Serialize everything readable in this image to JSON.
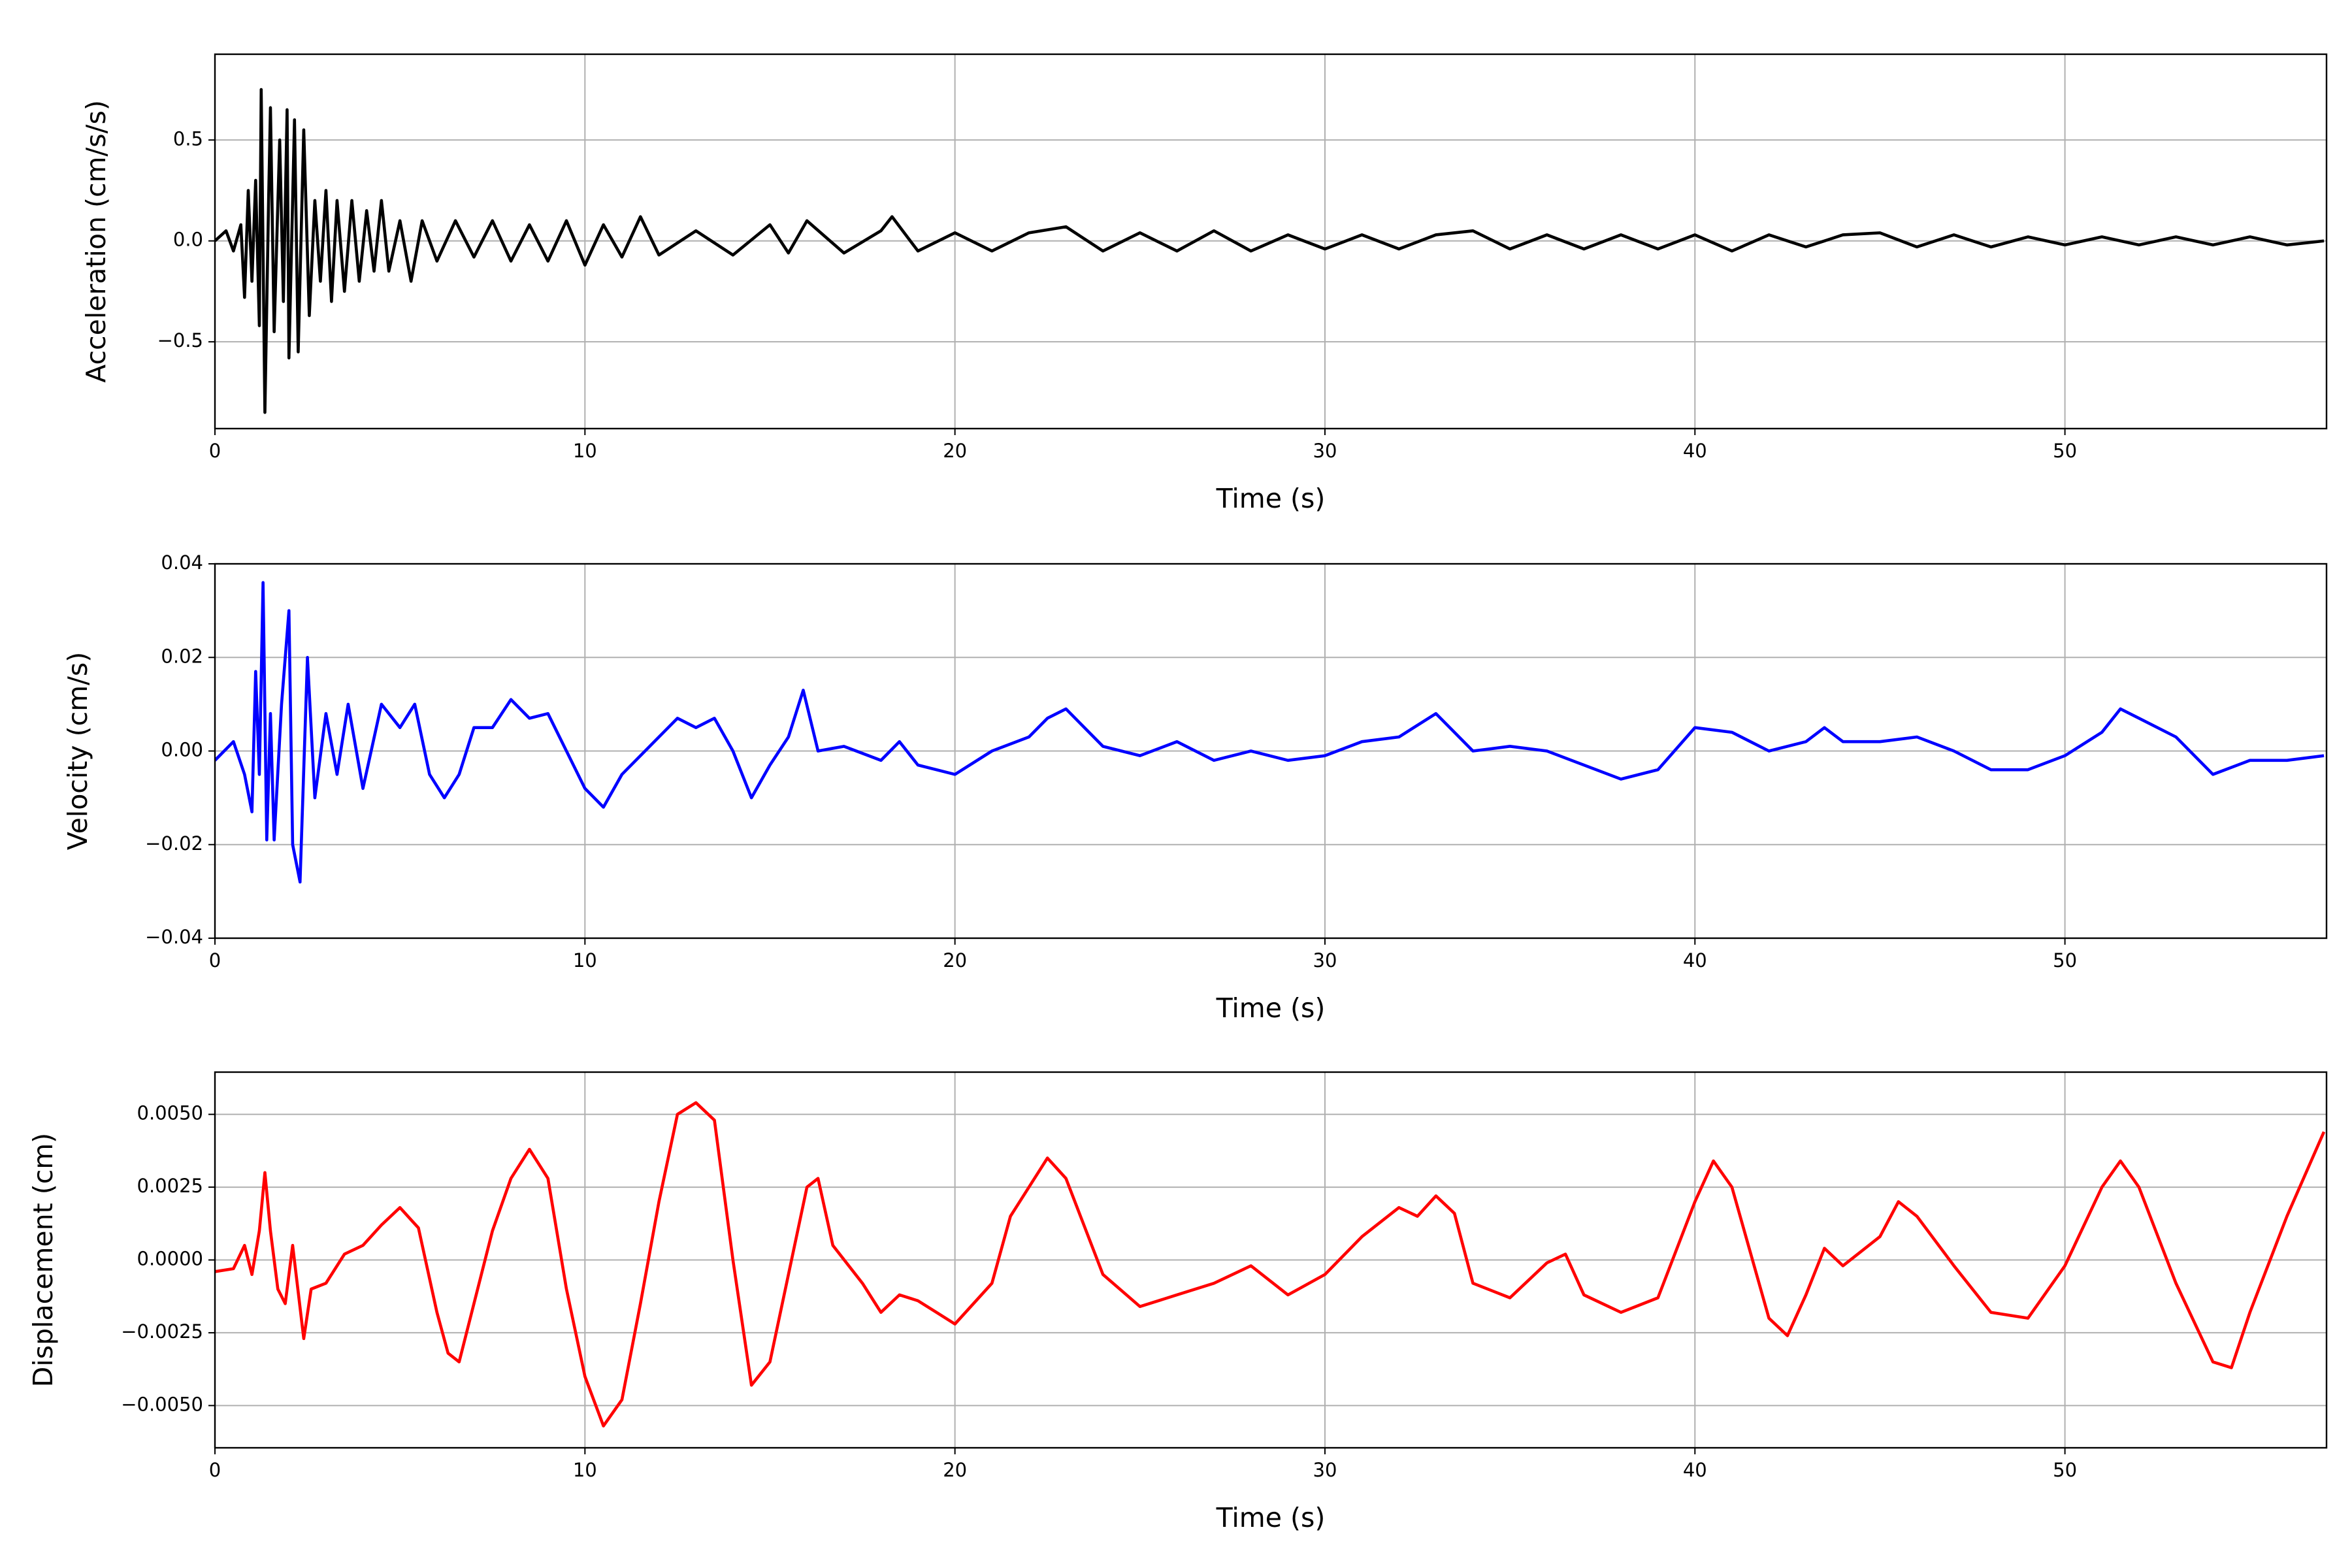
{
  "chart_data": [
    {
      "type": "line",
      "xlabel": "Time (s)",
      "ylabel": "Acceleration (cm/s/s)",
      "color": "#000000",
      "grid": true,
      "xlim": [
        0,
        57.07
      ],
      "xticks": [
        0,
        10,
        20,
        30,
        40,
        50
      ],
      "ylim": [
        -0.93,
        0.925
      ],
      "yticks": [
        {
          "value": -0.5,
          "label": "−0.5"
        },
        {
          "value": 0,
          "label": "0.0"
        },
        0.5
      ],
      "x": [
        0,
        0.3,
        0.5,
        0.7,
        0.8,
        0.9,
        1.0,
        1.1,
        1.2,
        1.25,
        1.35,
        1.45,
        1.5,
        1.6,
        1.75,
        1.85,
        1.95,
        2.0,
        2.15,
        2.25,
        2.4,
        2.55,
        2.7,
        2.85,
        3.0,
        3.15,
        3.3,
        3.5,
        3.7,
        3.9,
        4.1,
        4.3,
        4.5,
        4.7,
        5.0,
        5.3,
        5.6,
        6.0,
        6.5,
        7.0,
        7.5,
        8.0,
        8.5,
        9.0,
        9.5,
        10,
        10.5,
        11,
        11.5,
        12,
        13,
        14,
        15,
        15.5,
        16,
        17,
        18,
        18.3,
        19,
        20,
        21,
        22,
        23,
        24,
        25,
        26,
        27,
        28,
        29,
        30,
        31,
        32,
        33,
        34,
        35,
        36,
        37,
        38,
        39,
        40,
        41,
        42,
        43,
        44,
        45,
        46,
        47,
        48,
        49,
        50,
        51,
        52,
        53,
        54,
        55,
        56,
        57
      ],
      "values": [
        0,
        0.05,
        -0.05,
        0.08,
        -0.28,
        0.25,
        -0.2,
        0.3,
        -0.42,
        0.75,
        -0.85,
        0.2,
        0.66,
        -0.45,
        0.5,
        -0.3,
        0.65,
        -0.58,
        0.6,
        -0.55,
        0.55,
        -0.37,
        0.2,
        -0.2,
        0.25,
        -0.3,
        0.2,
        -0.25,
        0.2,
        -0.2,
        0.15,
        -0.15,
        0.2,
        -0.15,
        0.1,
        -0.2,
        0.1,
        -0.1,
        0.1,
        -0.08,
        0.1,
        -0.1,
        0.08,
        -0.1,
        0.1,
        -0.12,
        0.08,
        -0.08,
        0.12,
        -0.07,
        0.05,
        -0.07,
        0.08,
        -0.06,
        0.1,
        -0.06,
        0.05,
        0.12,
        -0.05,
        0.04,
        -0.05,
        0.04,
        0.07,
        -0.05,
        0.04,
        -0.05,
        0.05,
        -0.05,
        0.03,
        -0.04,
        0.03,
        -0.04,
        0.03,
        0.05,
        -0.04,
        0.03,
        -0.04,
        0.03,
        -0.04,
        0.03,
        -0.05,
        0.03,
        -0.03,
        0.03,
        0.04,
        -0.03,
        0.03,
        -0.03,
        0.02,
        -0.02,
        0.02,
        -0.02,
        0.02,
        -0.02,
        0.02,
        -0.02,
        0
      ]
    },
    {
      "type": "line",
      "xlabel": "Time (s)",
      "ylabel": "Velocity (cm/s)",
      "color": "#0000ff",
      "grid": true,
      "xlim": [
        0,
        57.07
      ],
      "xticks": [
        0,
        10,
        20,
        30,
        40,
        50
      ],
      "ylim": [
        -0.04,
        0.04
      ],
      "yticks": [
        {
          "value": -0.04,
          "label": "−0.04"
        },
        {
          "value": -0.02,
          "label": "−0.02"
        },
        {
          "value": 0,
          "label": "0.00"
        },
        {
          "value": 0.02,
          "label": "0.02"
        },
        {
          "value": 0.04,
          "label": "0.04"
        }
      ],
      "x": [
        0,
        0.5,
        0.8,
        1.0,
        1.1,
        1.2,
        1.3,
        1.4,
        1.5,
        1.6,
        1.8,
        2.0,
        2.1,
        2.3,
        2.5,
        2.7,
        3.0,
        3.3,
        3.6,
        4.0,
        4.5,
        5.0,
        5.4,
        5.8,
        6.2,
        6.6,
        7.0,
        7.5,
        8.0,
        8.5,
        9.0,
        9.5,
        10,
        10.5,
        11,
        12,
        12.5,
        13,
        13.5,
        14,
        14.5,
        15,
        15.5,
        15.9,
        16.3,
        17,
        18,
        18.5,
        19,
        20,
        21,
        22,
        22.5,
        23,
        24,
        25,
        26,
        27,
        28,
        29,
        30,
        31,
        32,
        33,
        34,
        35,
        36,
        37,
        38,
        39,
        40,
        41,
        42,
        43,
        43.5,
        44,
        45,
        46,
        47,
        48,
        49,
        50,
        51,
        51.5,
        52,
        53,
        54,
        55,
        56,
        57
      ],
      "values": [
        -0.002,
        0.002,
        -0.005,
        -0.013,
        0.017,
        -0.005,
        0.036,
        -0.019,
        0.008,
        -0.019,
        0.01,
        0.03,
        -0.02,
        -0.028,
        0.02,
        -0.01,
        0.008,
        -0.005,
        0.01,
        -0.008,
        0.01,
        0.005,
        0.01,
        -0.005,
        -0.01,
        -0.005,
        0.005,
        0.005,
        0.011,
        0.007,
        0.008,
        0,
        -0.008,
        -0.012,
        -0.005,
        0.003,
        0.007,
        0.005,
        0.007,
        0,
        -0.01,
        -0.003,
        0.003,
        0.013,
        0,
        0.001,
        -0.002,
        0.002,
        -0.003,
        -0.005,
        0,
        0.003,
        0.007,
        0.009,
        0.001,
        -0.001,
        0.002,
        -0.002,
        0,
        -0.002,
        -0.001,
        0.002,
        0.003,
        0.008,
        0,
        0.001,
        0,
        -0.003,
        -0.006,
        -0.004,
        0.005,
        0.004,
        0,
        0.002,
        0.005,
        0.002,
        0.002,
        0.003,
        0,
        -0.004,
        -0.004,
        -0.001,
        0.004,
        0.009,
        0.007,
        0.003,
        -0.005,
        -0.002,
        -0.002,
        -0.001
      ]
    },
    {
      "type": "line",
      "xlabel": "Time (s)",
      "ylabel": "Displacement (cm)",
      "color": "#ff0000",
      "grid": true,
      "xlim": [
        0,
        57.07
      ],
      "xticks": [
        0,
        10,
        20,
        30,
        40,
        50
      ],
      "ylim": [
        -0.00645,
        0.00645
      ],
      "yticks": [
        {
          "value": -0.005,
          "label": "−0.0050"
        },
        {
          "value": -0.0025,
          "label": "−0.0025"
        },
        {
          "value": 0,
          "label": "0.0000"
        },
        {
          "value": 0.0025,
          "label": "0.0025"
        },
        {
          "value": 0.005,
          "label": "0.0050"
        }
      ],
      "x": [
        0,
        0.5,
        0.8,
        1.0,
        1.2,
        1.35,
        1.5,
        1.7,
        1.9,
        2.1,
        2.4,
        2.6,
        3.0,
        3.5,
        4.0,
        4.5,
        5.0,
        5.5,
        6.0,
        6.3,
        6.6,
        7.0,
        7.5,
        8.0,
        8.5,
        9.0,
        9.5,
        10,
        10.5,
        11,
        11.5,
        12,
        12.5,
        13,
        13.5,
        14,
        14.5,
        15,
        15.5,
        16,
        16.3,
        16.7,
        17.5,
        18,
        18.5,
        19,
        19.5,
        20,
        21,
        21.5,
        22,
        22.5,
        23,
        24,
        25,
        26,
        27,
        28,
        29,
        30,
        31,
        32,
        32.5,
        33,
        33.5,
        34,
        35,
        36,
        36.5,
        37,
        38,
        39,
        40,
        40.5,
        41,
        42,
        42.5,
        43,
        43.5,
        44,
        45,
        45.5,
        46,
        47,
        48,
        49,
        50,
        51,
        51.5,
        52,
        53,
        54,
        54.5,
        55,
        56,
        57
      ],
      "values": [
        -0.0004,
        -0.0003,
        0.0005,
        -0.0005,
        0.001,
        0.003,
        0.001,
        -0.001,
        -0.0015,
        0.0005,
        -0.0027,
        -0.001,
        -0.0008,
        0.0002,
        0.0005,
        0.0012,
        0.0018,
        0.0011,
        -0.0018,
        -0.0032,
        -0.0035,
        -0.0015,
        0.001,
        0.0028,
        0.0038,
        0.0028,
        -0.001,
        -0.004,
        -0.0057,
        -0.0048,
        -0.0015,
        0.002,
        0.005,
        0.0054,
        0.0048,
        0,
        -0.0043,
        -0.0035,
        -0.0005,
        0.0025,
        0.0028,
        0.0005,
        -0.0008,
        -0.0018,
        -0.0012,
        -0.0014,
        -0.0018,
        -0.0022,
        -0.0008,
        0.0015,
        0.0025,
        0.0035,
        0.0028,
        -0.0005,
        -0.0016,
        -0.0012,
        -0.0008,
        -0.0002,
        -0.0012,
        -0.0005,
        0.0008,
        0.0018,
        0.0015,
        0.0022,
        0.0016,
        -0.0008,
        -0.0013,
        -0.0001,
        0.0002,
        -0.0012,
        -0.0018,
        -0.0013,
        0.002,
        0.0034,
        0.0025,
        -0.002,
        -0.0026,
        -0.0012,
        0.0004,
        -0.0002,
        0.0008,
        0.002,
        0.0015,
        -0.0002,
        -0.0018,
        -0.002,
        -0.0002,
        0.0025,
        0.0034,
        0.0025,
        -0.0008,
        -0.0035,
        -0.0037,
        -0.0018,
        0.0015,
        0.0044
      ]
    }
  ]
}
